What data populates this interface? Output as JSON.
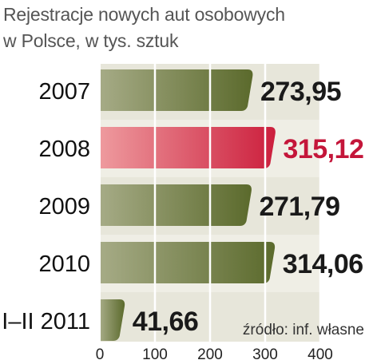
{
  "title_lines": [
    "Rejestracje nowych aut osobowych",
    "w Polsce, w tys. sztuk"
  ],
  "source": "źródło: inf. własne",
  "colors": {
    "bar_dark": "#5b6a2c",
    "bar_light": "#a6ab86",
    "highlight_dark": "#cc1f3d",
    "highlight_light": "#ee9a9e",
    "value_text": "#1a1a1a",
    "highlight_text": "#c4163a",
    "plot_bg": "#e7e6da",
    "plot_bg_alt": "#efeee5"
  },
  "chart_data": {
    "type": "bar",
    "orientation": "horizontal",
    "categories": [
      "2007",
      "2008",
      "2009",
      "2010",
      "I–II 2011"
    ],
    "values": [
      273.95,
      315.12,
      271.79,
      314.06,
      41.66
    ],
    "value_labels": [
      "273,95",
      "315,12",
      "271,79",
      "314,06",
      "41,66"
    ],
    "highlight_index": 1,
    "xlim": [
      0,
      400
    ],
    "xticks": [
      0,
      100,
      200,
      300,
      400
    ],
    "grid": true,
    "title": "Rejestracje nowych aut osobowych w Polsce, w tys. sztuk",
    "xlabel": "",
    "ylabel": ""
  }
}
